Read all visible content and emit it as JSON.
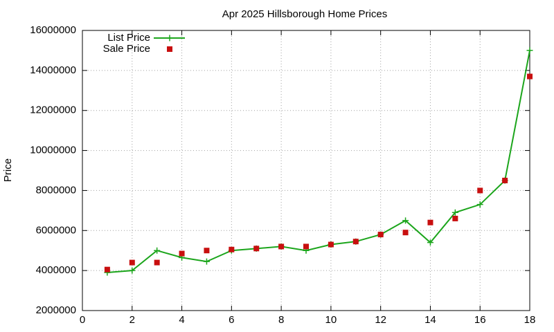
{
  "chart_data": {
    "type": "line",
    "title": "Apr 2025 Hillsborough Home Prices",
    "y_label": "Price",
    "x": [
      1,
      2,
      3,
      4,
      5,
      6,
      7,
      8,
      9,
      10,
      11,
      12,
      13,
      14,
      15,
      16,
      17,
      18
    ],
    "series": [
      {
        "name": "List Price",
        "color": "#1ba51b",
        "style": "linespoints",
        "values": [
          3900000,
          4000000,
          5000000,
          4650000,
          4450000,
          5000000,
          5100000,
          5200000,
          5000000,
          5300000,
          5450000,
          5800000,
          6500000,
          5400000,
          6900000,
          7300000,
          8500000,
          15000000
        ]
      },
      {
        "name": "Sale Price",
        "color": "#c80f0f",
        "style": "points",
        "values": [
          4050000,
          4400000,
          4400000,
          4850000,
          5000000,
          5050000,
          5100000,
          5200000,
          5200000,
          5300000,
          5450000,
          5800000,
          5900000,
          6400000,
          6600000,
          8000000,
          8500000,
          13700000
        ]
      }
    ],
    "xlim": [
      0,
      18
    ],
    "xticks": [
      0,
      2,
      4,
      6,
      8,
      10,
      12,
      14,
      16,
      18
    ],
    "ylim": [
      2000000,
      16000000
    ],
    "yticks": [
      2000000,
      4000000,
      6000000,
      8000000,
      10000000,
      12000000,
      14000000,
      16000000
    ],
    "grid": true,
    "legend": "top-left"
  }
}
